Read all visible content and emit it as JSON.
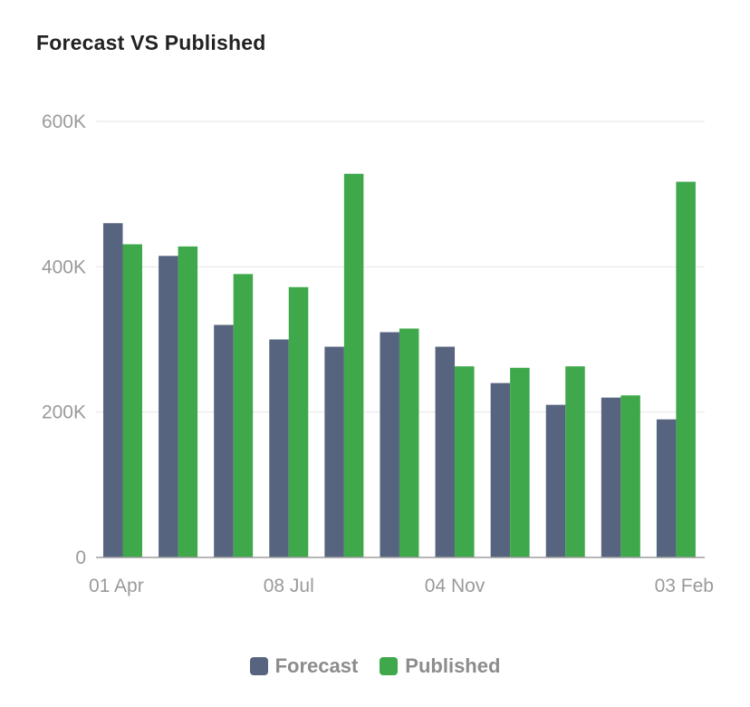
{
  "chart_data": {
    "type": "bar",
    "title": "Forecast VS Published",
    "categories": [
      "01 Apr",
      "",
      "",
      "08 Jul",
      "",
      "",
      "04 Nov",
      "",
      "",
      "",
      "03 Feb"
    ],
    "x_tick_labels": [
      "01 Apr",
      "08 Jul",
      "04 Nov",
      "03 Feb"
    ],
    "y_tick_labels": [
      "0",
      "200K",
      "400K",
      "600K"
    ],
    "ylim": [
      0,
      600000
    ],
    "grid": true,
    "legend": "bottom",
    "series": [
      {
        "name": "Forecast",
        "color": "#56647f",
        "values": [
          460000,
          415000,
          320000,
          300000,
          290000,
          310000,
          290000,
          240000,
          210000,
          220000,
          190000
        ]
      },
      {
        "name": "Published",
        "color": "#3ea84a",
        "values": [
          431000,
          428000,
          390000,
          372000,
          528000,
          315000,
          263000,
          261000,
          263000,
          223000,
          517000
        ]
      }
    ]
  }
}
